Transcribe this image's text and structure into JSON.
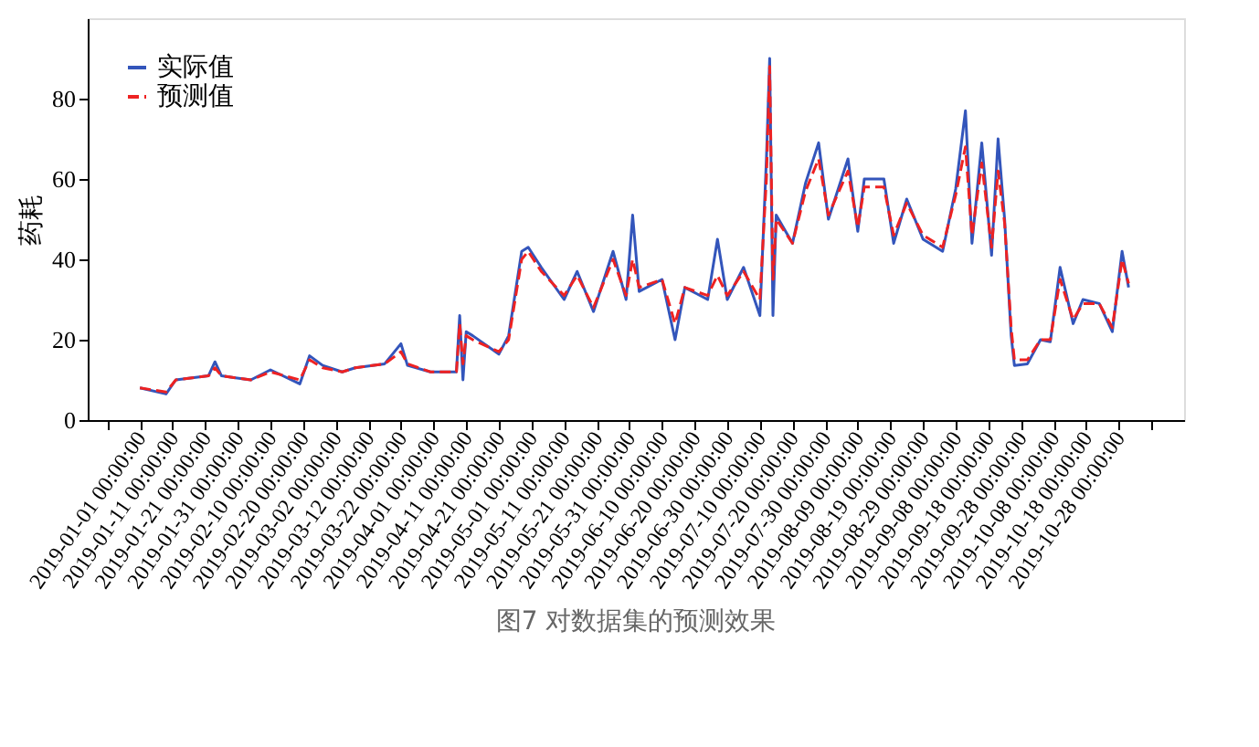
{
  "chart_data": {
    "type": "line",
    "title": "图7 对数据集的预测效果",
    "ylabel": "药耗",
    "x": [
      "2019-01-01",
      "2019-01-09",
      "2019-01-12",
      "2019-01-22",
      "2019-01-24",
      "2019-01-26",
      "2019-02-04",
      "2019-02-10",
      "2019-02-19",
      "2019-02-22",
      "2019-02-26",
      "2019-03-04",
      "2019-03-08",
      "2019-03-17",
      "2019-03-22",
      "2019-03-24",
      "2019-03-31",
      "2019-04-08",
      "2019-04-09",
      "2019-04-10",
      "2019-04-11",
      "2019-04-13",
      "2019-04-21",
      "2019-04-24",
      "2019-04-28",
      "2019-04-30",
      "2019-05-04",
      "2019-05-11",
      "2019-05-15",
      "2019-05-20",
      "2019-05-26",
      "2019-05-30",
      "2019-06-01",
      "2019-06-03",
      "2019-06-10",
      "2019-06-14",
      "2019-06-17",
      "2019-06-24",
      "2019-06-27",
      "2019-06-30",
      "2019-07-05",
      "2019-07-10",
      "2019-07-12",
      "2019-07-13",
      "2019-07-14",
      "2019-07-15",
      "2019-07-20",
      "2019-07-24",
      "2019-07-28",
      "2019-07-31",
      "2019-08-06",
      "2019-08-09",
      "2019-08-11",
      "2019-08-17",
      "2019-08-20",
      "2019-08-24",
      "2019-08-29",
      "2019-09-04",
      "2019-09-08",
      "2019-09-11",
      "2019-09-13",
      "2019-09-16",
      "2019-09-19",
      "2019-09-21",
      "2019-09-23",
      "2019-09-25",
      "2019-09-26",
      "2019-09-30",
      "2019-10-04",
      "2019-10-07",
      "2019-10-10",
      "2019-10-14",
      "2019-10-17",
      "2019-10-22",
      "2019-10-26",
      "2019-10-29",
      "2019-10-31"
    ],
    "series": [
      {
        "name": "实际值",
        "color": "#3355bb",
        "line_style": "solid",
        "values": [
          8,
          6.5,
          10,
          11,
          14.5,
          11,
          10,
          12.5,
          9,
          16,
          13.6,
          12,
          13,
          14,
          19,
          13.6,
          12,
          12,
          26,
          10,
          22,
          21,
          16.4,
          21,
          42,
          43,
          38,
          30,
          37,
          27,
          42,
          30,
          51,
          32,
          35,
          20,
          33,
          30,
          45,
          30,
          38,
          26,
          65,
          90,
          26,
          51,
          44,
          59,
          69,
          50,
          65,
          47,
          60,
          60,
          44,
          55,
          45,
          42,
          57.5,
          77,
          44,
          69,
          41,
          70,
          50,
          21,
          13.6,
          14,
          20,
          19.5,
          38,
          24,
          30,
          29,
          22,
          42,
          33
        ]
      },
      {
        "name": "预测值",
        "color": "#ee2222",
        "line_style": "dashed",
        "values": [
          8,
          7,
          10,
          11,
          13,
          11,
          10,
          12,
          10,
          15,
          13,
          12,
          13,
          14,
          17,
          14,
          12,
          12,
          24,
          14,
          21,
          20,
          17,
          20,
          40,
          42,
          37,
          31,
          36,
          28,
          40,
          31,
          40,
          33,
          35,
          24,
          33,
          31,
          36,
          31,
          37,
          30,
          60,
          88,
          35,
          50,
          44,
          57,
          65,
          51,
          62,
          48,
          58,
          58,
          46,
          54,
          46,
          43,
          56,
          68,
          46,
          64,
          43,
          62,
          49,
          23,
          15,
          15,
          20,
          20,
          35,
          25,
          29,
          29,
          23,
          40,
          34
        ]
      }
    ],
    "xlim": [
      "2018-12-16",
      "2019-11-17"
    ],
    "xticks": [
      {
        "value": "2018-12-22",
        "label": null
      },
      {
        "value": "2019-01-01",
        "label": "2019-01-01 00:00:00"
      },
      {
        "value": "2019-01-11",
        "label": "2019-01-11 00:00:00"
      },
      {
        "value": "2019-01-21",
        "label": "2019-01-21 00:00:00"
      },
      {
        "value": "2019-01-31",
        "label": "2019-01-31 00:00:00"
      },
      {
        "value": "2019-02-10",
        "label": "2019-02-10 00:00:00"
      },
      {
        "value": "2019-02-20",
        "label": "2019-02-20 00:00:00"
      },
      {
        "value": "2019-03-02",
        "label": "2019-03-02 00:00:00"
      },
      {
        "value": "2019-03-12",
        "label": "2019-03-12 00:00:00"
      },
      {
        "value": "2019-03-22",
        "label": "2019-03-22 00:00:00"
      },
      {
        "value": "2019-04-01",
        "label": "2019-04-01 00:00:00"
      },
      {
        "value": "2019-04-11",
        "label": "2019-04-11 00:00:00"
      },
      {
        "value": "2019-04-21",
        "label": "2019-04-21 00:00:00"
      },
      {
        "value": "2019-05-01",
        "label": "2019-05-01 00:00:00"
      },
      {
        "value": "2019-05-11",
        "label": "2019-05-11 00:00:00"
      },
      {
        "value": "2019-05-21",
        "label": "2019-05-21 00:00:00"
      },
      {
        "value": "2019-05-31",
        "label": "2019-05-31 00:00:00"
      },
      {
        "value": "2019-06-10",
        "label": "2019-06-10 00:00:00"
      },
      {
        "value": "2019-06-20",
        "label": "2019-06-20 00:00:00"
      },
      {
        "value": "2019-06-30",
        "label": "2019-06-30 00:00:00"
      },
      {
        "value": "2019-07-10",
        "label": "2019-07-10 00:00:00"
      },
      {
        "value": "2019-07-20",
        "label": "2019-07-20 00:00:00"
      },
      {
        "value": "2019-07-30",
        "label": "2019-07-30 00:00:00"
      },
      {
        "value": "2019-08-09",
        "label": "2019-08-09 00:00:00"
      },
      {
        "value": "2019-08-19",
        "label": "2019-08-19 00:00:00"
      },
      {
        "value": "2019-08-29",
        "label": "2019-08-29 00:00:00"
      },
      {
        "value": "2019-09-08",
        "label": "2019-09-08 00:00:00"
      },
      {
        "value": "2019-09-18",
        "label": "2019-09-18 00:00:00"
      },
      {
        "value": "2019-09-28",
        "label": "2019-09-28 00:00:00"
      },
      {
        "value": "2019-10-08",
        "label": "2019-10-08 00:00:00"
      },
      {
        "value": "2019-10-18",
        "label": "2019-10-18 00:00:00"
      },
      {
        "value": "2019-10-28",
        "label": "2019-10-28 00:00:00"
      },
      {
        "value": "2019-11-07",
        "label": null
      }
    ],
    "ylim": [
      0,
      100
    ],
    "yticks": [
      0,
      20,
      40,
      60,
      80
    ],
    "grid": false,
    "legend": "top left"
  }
}
